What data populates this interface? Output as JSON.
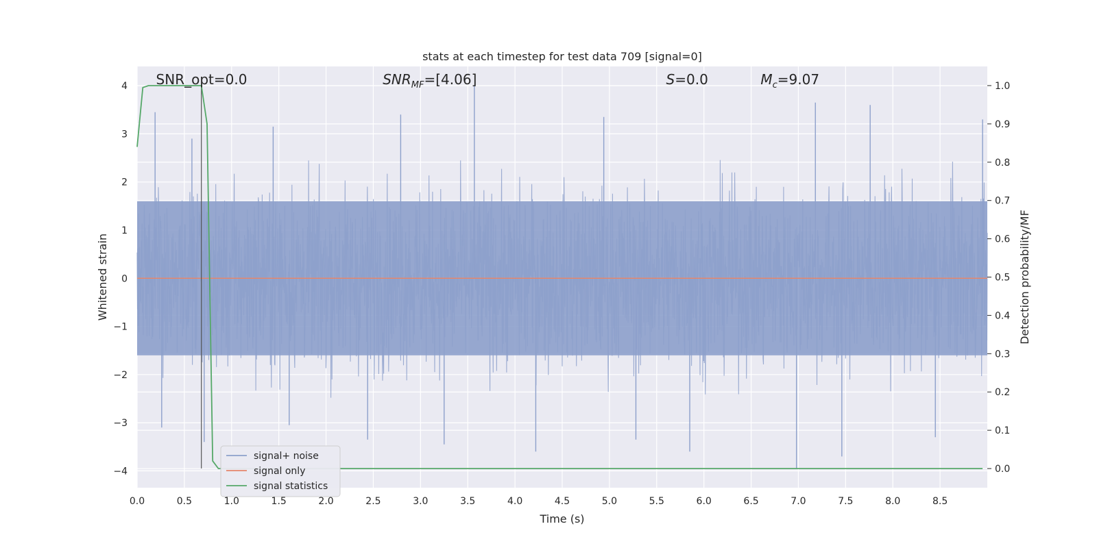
{
  "chart_data": {
    "type": "line",
    "title": "stats at each timestep for test data 709 [signal=0]",
    "xlabel": "Time (s)",
    "ylabel": "Whitened strain",
    "y2label": "Detection probability/MF",
    "xlim": [
      0.0,
      9.0
    ],
    "ylim": [
      -4.35,
      4.4
    ],
    "y2lim": [
      -0.05,
      1.05
    ],
    "x_ticks": [
      0.0,
      0.5,
      1.0,
      1.5,
      2.0,
      2.5,
      3.0,
      3.5,
      4.0,
      4.5,
      5.0,
      5.5,
      6.0,
      6.5,
      7.0,
      7.5,
      8.0,
      8.5
    ],
    "x_tick_labels": [
      "0.0",
      "0.5",
      "1.0",
      "1.5",
      "2.0",
      "2.5",
      "3.0",
      "3.5",
      "4.0",
      "4.5",
      "5.0",
      "5.5",
      "6.0",
      "6.5",
      "7.0",
      "7.5",
      "8.0",
      "8.5"
    ],
    "y_ticks": [
      -4,
      -3,
      -2,
      -1,
      0,
      1,
      2,
      3,
      4
    ],
    "y_tick_labels": [
      "−4",
      "−3",
      "−2",
      "−1",
      "0",
      "1",
      "2",
      "3",
      "4"
    ],
    "y2_ticks": [
      0.0,
      0.1,
      0.2,
      0.3,
      0.4,
      0.5,
      0.6,
      0.7,
      0.8,
      0.9,
      1.0
    ],
    "y2_tick_labels": [
      "0.0",
      "0.1",
      "0.2",
      "0.3",
      "0.4",
      "0.5",
      "0.6",
      "0.7",
      "0.8",
      "0.9",
      "1.0"
    ],
    "grid": true,
    "legend_position": "lower-left",
    "series": [
      {
        "name": "signal+ noise",
        "color": "#8da0cb",
        "axis": "left",
        "kind": "noise",
        "typical_range": [
          -1.6,
          1.6
        ],
        "extremes": [
          {
            "x": 0.19,
            "y": 3.45
          },
          {
            "x": 0.26,
            "y": -3.1
          },
          {
            "x": 0.58,
            "y": 2.9
          },
          {
            "x": 0.71,
            "y": -3.4
          },
          {
            "x": 1.44,
            "y": 3.15
          },
          {
            "x": 1.61,
            "y": -3.05
          },
          {
            "x": 2.44,
            "y": -3.35
          },
          {
            "x": 2.79,
            "y": 3.4
          },
          {
            "x": 3.25,
            "y": -3.45
          },
          {
            "x": 3.57,
            "y": 4.0
          },
          {
            "x": 4.22,
            "y": -3.6
          },
          {
            "x": 4.94,
            "y": 3.35
          },
          {
            "x": 5.28,
            "y": -3.35
          },
          {
            "x": 5.85,
            "y": -3.6
          },
          {
            "x": 6.98,
            "y": -3.95
          },
          {
            "x": 7.18,
            "y": 3.65
          },
          {
            "x": 7.46,
            "y": -3.7
          },
          {
            "x": 7.76,
            "y": 3.6
          },
          {
            "x": 8.45,
            "y": -3.3
          },
          {
            "x": 8.95,
            "y": 3.3
          }
        ]
      },
      {
        "name": "signal only",
        "color": "#e5866b",
        "axis": "left",
        "x": [
          0.0,
          9.0
        ],
        "y": [
          0.0,
          0.0
        ]
      },
      {
        "name": "signal statistics",
        "color": "#55a868",
        "axis": "right",
        "x": [
          0.0,
          0.06,
          0.12,
          0.2,
          0.3,
          0.4,
          0.5,
          0.6,
          0.68,
          0.74,
          0.8,
          0.86,
          0.95,
          1.1,
          2.0,
          4.0,
          6.0,
          8.0,
          8.95
        ],
        "y": [
          0.84,
          0.995,
          1.0,
          1.0,
          1.0,
          1.0,
          1.0,
          1.0,
          1.0,
          0.9,
          0.02,
          0.0,
          0.0,
          0.0,
          0.0,
          0.0,
          0.0,
          0.0,
          0.0
        ]
      }
    ],
    "vline": {
      "x": 0.68,
      "y_from": -3.95,
      "y_to": 4.0,
      "color": "#555555"
    },
    "annotations": [
      {
        "text": "SNR_opt=0.0",
        "x": 0.2
      },
      {
        "text": "SNR",
        "sub": "MF",
        "rest": "=[4.06]",
        "italic_main": true,
        "x": 2.6
      },
      {
        "text": "S",
        "rest": "=0.0",
        "italic_main": true,
        "x": 5.6
      },
      {
        "text": "M",
        "sub": "c",
        "rest": "=9.07",
        "italic_main": true,
        "x": 6.6
      }
    ]
  }
}
